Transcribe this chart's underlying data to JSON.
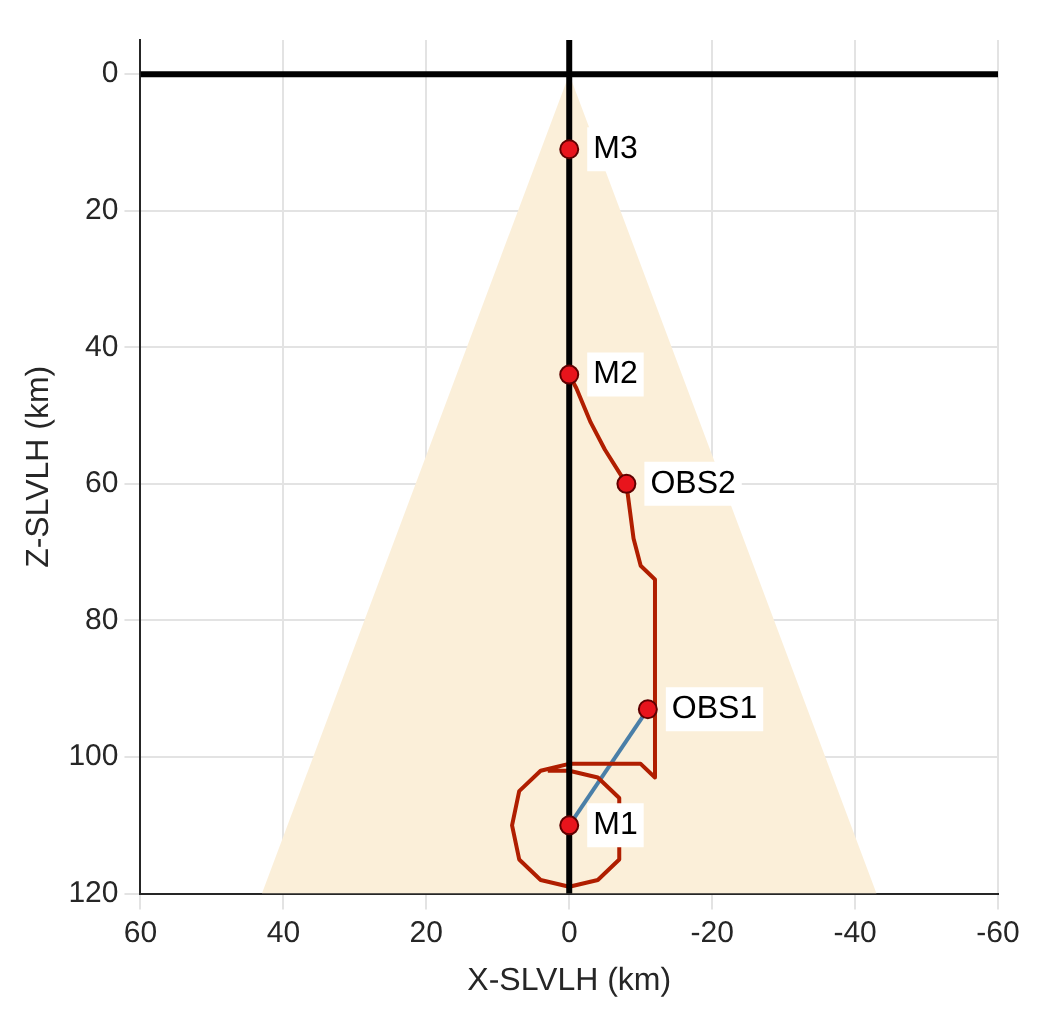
{
  "chart_data": {
    "type": "line",
    "xlabel": "X-SLVLH (km)",
    "ylabel": "Z-SLVLH (km)",
    "xlim": [
      60,
      -60
    ],
    "xticks": [
      60,
      40,
      20,
      0,
      -20,
      -40,
      -60
    ],
    "ylim": [
      120,
      -5
    ],
    "yticks": [
      0,
      20,
      40,
      60,
      80,
      100,
      120
    ],
    "grid": true,
    "legend": false,
    "series": [
      {
        "type": "line",
        "color": "#000000",
        "x": [
          0,
          0
        ],
        "values": [
          -5,
          120
        ]
      },
      {
        "type": "line",
        "color": "#000000",
        "x": [
          60,
          -60
        ],
        "values": [
          0,
          0
        ]
      },
      {
        "type": "area",
        "color": "#fbefd9",
        "x": [
          43,
          0,
          -43,
          43
        ],
        "values": [
          120,
          0,
          120,
          120
        ]
      },
      {
        "color": "#b01e00",
        "x": [
          0,
          0,
          -1,
          -3,
          -5,
          -8,
          -9,
          -10,
          -12,
          -12,
          -10,
          -8,
          -4,
          0,
          4,
          7,
          8,
          7,
          4,
          0,
          -4,
          -7,
          -7,
          -4,
          0,
          3
        ],
        "values": [
          32,
          44,
          46,
          51,
          55,
          60,
          68,
          72,
          74,
          103,
          101,
          101,
          101,
          101,
          102,
          105,
          110,
          115,
          118,
          119,
          118,
          115,
          106,
          103,
          102,
          102
        ]
      },
      {
        "type": "line",
        "color": "#4a7fa8",
        "x": [
          0,
          -11
        ],
        "values": [
          110,
          93
        ]
      },
      {
        "type": "scatter",
        "color": "#e8141c",
        "marker": "circle",
        "x": [
          0,
          0,
          -8,
          -11,
          0
        ],
        "values": [
          11,
          44,
          60,
          93,
          110
        ]
      }
    ],
    "annotations": [
      {
        "text": "M3",
        "x": 0,
        "y": 11
      },
      {
        "text": "M2",
        "x": 0,
        "y": 44
      },
      {
        "text": "OBS2",
        "x": -8,
        "y": 60
      },
      {
        "text": "OBS1",
        "x": -11,
        "y": 93
      },
      {
        "text": "M1",
        "x": 0,
        "y": 110
      }
    ]
  }
}
